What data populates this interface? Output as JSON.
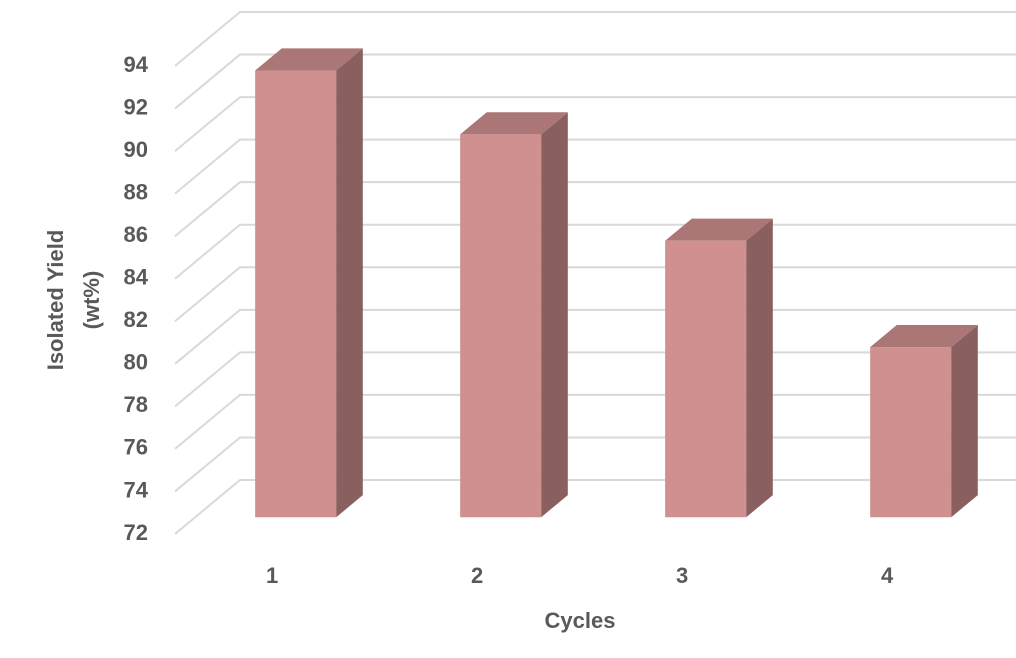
{
  "chart_data": {
    "type": "bar3d",
    "x_label": "Cycles",
    "y_label": [
      "Isolated Yield",
      "(wt%)"
    ],
    "categories": [
      "1",
      "2",
      "3",
      "4"
    ],
    "values": [
      93,
      90,
      85,
      80
    ],
    "color": "#d09090",
    "ylim": [
      72,
      94
    ],
    "yticks": [
      72,
      74,
      76,
      78,
      80,
      82,
      84,
      86,
      88,
      90,
      92,
      94
    ],
    "grid": true
  }
}
